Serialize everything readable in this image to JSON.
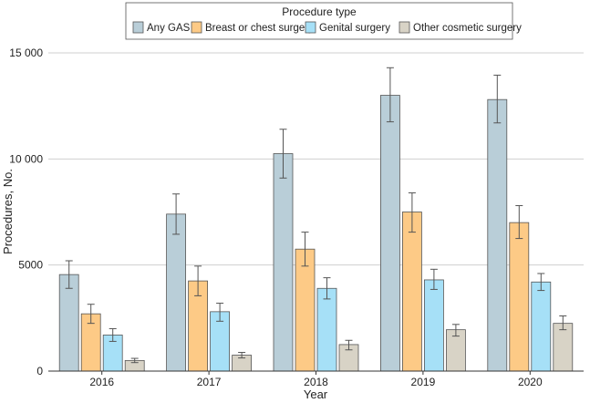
{
  "chart_data": {
    "type": "bar",
    "xlabel": "Year",
    "ylabel": "Procedures, No.",
    "ylim": [
      0,
      15000
    ],
    "yticks": [
      0,
      5000,
      10000,
      15000
    ],
    "ytick_labels": [
      "0",
      "5000",
      "10 000",
      "15 000"
    ],
    "grid": true,
    "legend": {
      "title": "Procedure type",
      "placement": "top-center"
    },
    "categories": [
      "2016",
      "2017",
      "2018",
      "2019",
      "2020"
    ],
    "series": [
      {
        "name": "Any GAS",
        "color": "#b9ced8",
        "values": [
          4550,
          7400,
          10250,
          13000,
          12800
        ],
        "err_low": [
          3900,
          6450,
          9100,
          11750,
          11700
        ],
        "err_high": [
          5200,
          8350,
          11400,
          14300,
          13950
        ]
      },
      {
        "name": "Breast or chest surgery",
        "color": "#fdca86",
        "values": [
          2700,
          4250,
          5750,
          7500,
          7000
        ],
        "err_low": [
          2250,
          3550,
          4950,
          6550,
          6250
        ],
        "err_high": [
          3150,
          4950,
          6550,
          8400,
          7800
        ]
      },
      {
        "name": "Genital surgery",
        "color": "#a6e0f7",
        "values": [
          1700,
          2800,
          3900,
          4300,
          4200
        ],
        "err_low": [
          1400,
          2350,
          3400,
          3850,
          3800
        ],
        "err_high": [
          2000,
          3200,
          4400,
          4800,
          4600
        ]
      },
      {
        "name": "Other cosmetic surgery",
        "color": "#d8d3c6",
        "values": [
          500,
          750,
          1250,
          1950,
          2250
        ],
        "err_low": [
          400,
          620,
          1000,
          1650,
          1950
        ],
        "err_high": [
          600,
          880,
          1450,
          2200,
          2600
        ]
      }
    ]
  }
}
